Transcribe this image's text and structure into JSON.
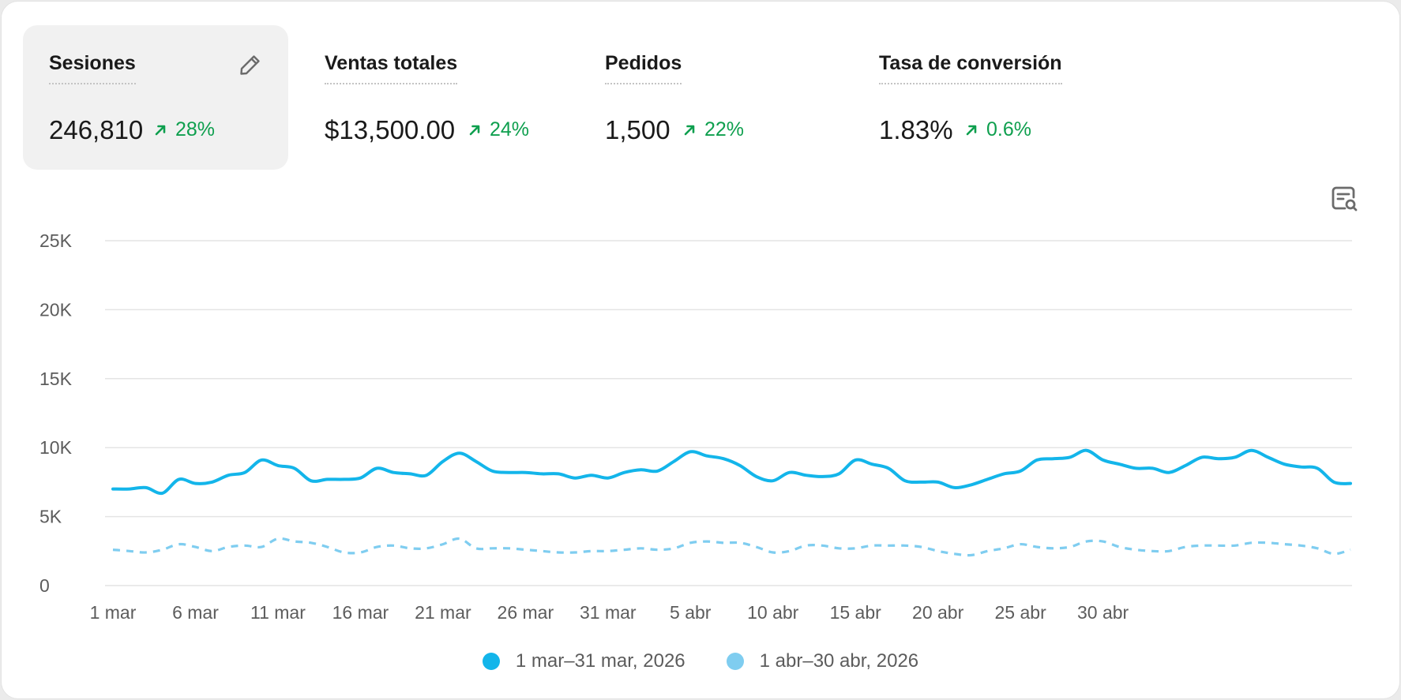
{
  "metrics": [
    {
      "title": "Sesiones",
      "value": "246,810",
      "change": "28%",
      "selected": true
    },
    {
      "title": "Ventas totales",
      "value": "$13,500.00",
      "change": "24%"
    },
    {
      "title": "Pedidos",
      "value": "1,500",
      "change": "22%"
    },
    {
      "title": "Tasa de conversión",
      "value": "1.83%",
      "change": "0.6%"
    }
  ],
  "icons": {
    "edit": "pencil-icon",
    "report": "report-search-icon",
    "trend": "arrow-up-right-icon"
  },
  "colors": {
    "positive": "#0e9f4e",
    "series_primary": "#13b5ea",
    "series_comparison": "#7fcdf0",
    "grid": "#e4e4e4"
  },
  "chart_data": {
    "type": "line",
    "ylim": [
      0,
      25000
    ],
    "y_ticks": [
      {
        "value": 0,
        "label": "0"
      },
      {
        "value": 5000,
        "label": "5K"
      },
      {
        "value": 10000,
        "label": "10K"
      },
      {
        "value": 15000,
        "label": "15K"
      },
      {
        "value": 20000,
        "label": "20K"
      },
      {
        "value": 25000,
        "label": "25K"
      }
    ],
    "x_tick_labels": [
      "1 mar",
      "6 mar",
      "11 mar",
      "16 mar",
      "21 mar",
      "26 mar",
      "31 mar",
      "5 abr",
      "10 abr",
      "15 abr",
      "20 abr",
      "25 abr",
      "30 abr"
    ],
    "x_tick_step_days": 5,
    "grid": true,
    "legend_position": "bottom-center",
    "series": [
      {
        "name": "1 mar–31 mar, 2026",
        "style": "solid",
        "values": [
          7000,
          7000,
          7100,
          6700,
          7700,
          7400,
          7500,
          8000,
          8200,
          9100,
          8700,
          8500,
          7600,
          7700,
          7700,
          7800,
          8500,
          8200,
          8100,
          8000,
          9000,
          9600,
          9000,
          8300,
          8200,
          8200,
          8100,
          8100,
          7800,
          8000,
          7800,
          8200,
          8400,
          8300,
          9000,
          9700,
          9400,
          9200,
          8700,
          7900,
          7600,
          8200,
          8000,
          7900,
          8100,
          9100,
          8800,
          8500,
          7600,
          7500,
          7500,
          7100,
          7300,
          7700,
          8100,
          8300,
          9100,
          9200,
          9300,
          9800,
          9100,
          8800,
          8500,
          8500,
          8200,
          8700,
          9300,
          9200,
          9300,
          9800,
          9300,
          8800,
          8600,
          8500,
          7500,
          7400
        ]
      },
      {
        "name": "1 abr–30 abr, 2026",
        "style": "dashed",
        "values": [
          2600,
          2500,
          2400,
          2600,
          3000,
          2800,
          2500,
          2800,
          2900,
          2800,
          3400,
          3200,
          3100,
          2800,
          2400,
          2400,
          2800,
          2900,
          2700,
          2700,
          3000,
          3400,
          2700,
          2700,
          2700,
          2600,
          2500,
          2400,
          2400,
          2500,
          2500,
          2600,
          2700,
          2600,
          2700,
          3100,
          3200,
          3100,
          3100,
          2800,
          2400,
          2500,
          2900,
          2900,
          2700,
          2700,
          2900,
          2900,
          2900,
          2800,
          2500,
          2300,
          2200,
          2500,
          2700,
          3000,
          2800,
          2700,
          2800,
          3200,
          3200,
          2800,
          2600,
          2500,
          2500,
          2800,
          2900,
          2900,
          2900,
          3100,
          3100,
          3000,
          2900,
          2700,
          2300,
          2600
        ]
      }
    ]
  }
}
